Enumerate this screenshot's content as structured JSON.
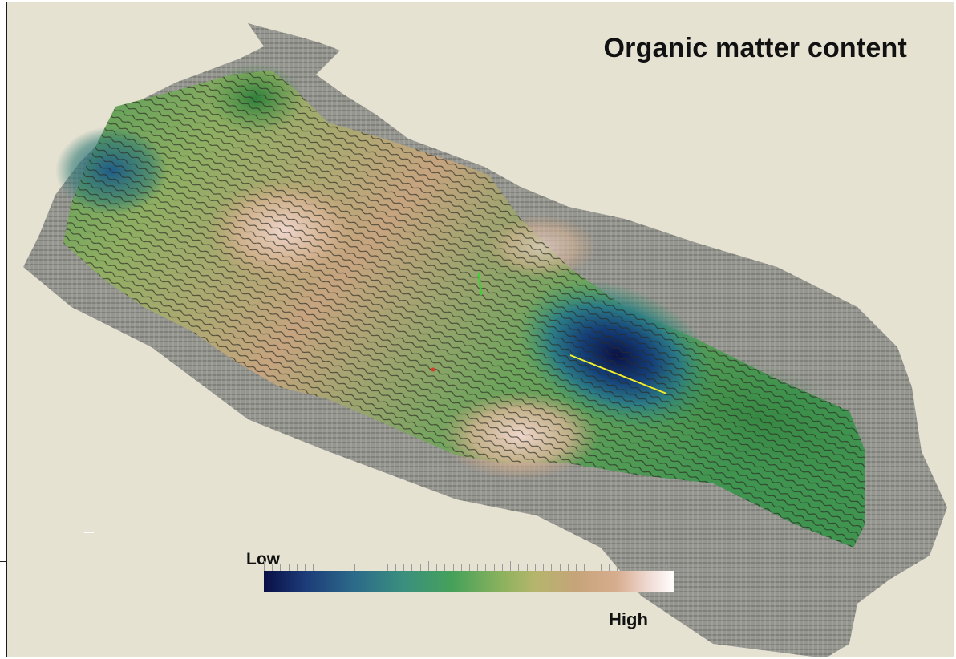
{
  "title": "Organic matter content",
  "colorbar": {
    "low_label": "Low",
    "high_label": "High",
    "colors": [
      "#0a0f46",
      "#2c6a8a",
      "#46a15a",
      "#b5b56c",
      "#d7ad8f",
      "#ffffff"
    ]
  },
  "background_color": "#e6e2d2"
}
